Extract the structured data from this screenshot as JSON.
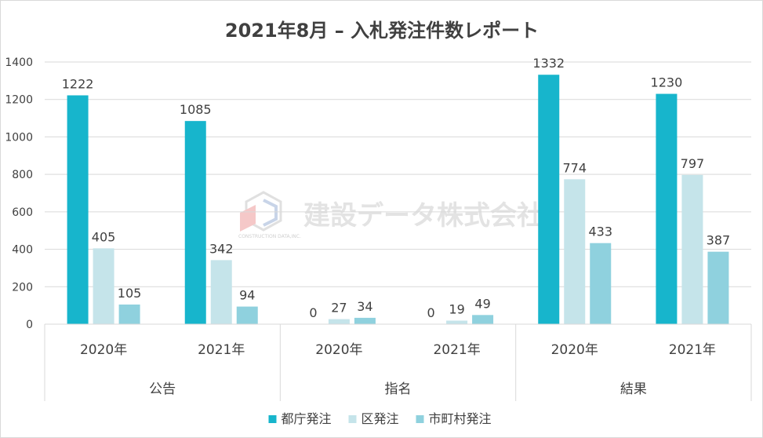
{
  "chart_data": {
    "type": "bar",
    "title": "2021年8月 – 入札発注件数レポート",
    "groups": [
      "公告",
      "指名",
      "結果"
    ],
    "years": [
      "2020年",
      "2021年"
    ],
    "categories": [
      "公告 2020年",
      "公告 2021年",
      "指名 2020年",
      "指名 2021年",
      "結果 2020年",
      "結果 2021年"
    ],
    "series": [
      {
        "name": "都庁発注",
        "color": "#17b5cc",
        "values": [
          1222,
          1085,
          0,
          0,
          1332,
          1230
        ]
      },
      {
        "name": "区発注",
        "color": "#c5e4ea",
        "values": [
          405,
          342,
          27,
          19,
          774,
          797
        ]
      },
      {
        "name": "市町村発注",
        "color": "#8fd1de",
        "values": [
          105,
          94,
          34,
          49,
          433,
          387
        ]
      }
    ],
    "ylim": [
      0,
      1400
    ],
    "yticks": [
      0,
      200,
      400,
      600,
      800,
      1000,
      1200,
      1400
    ],
    "grid": true,
    "legend": "bottom",
    "xlabel": "",
    "ylabel": ""
  },
  "watermark": {
    "text": "建設データ株式会社",
    "small_text": "CONSTRUCTION DATA,INC."
  }
}
